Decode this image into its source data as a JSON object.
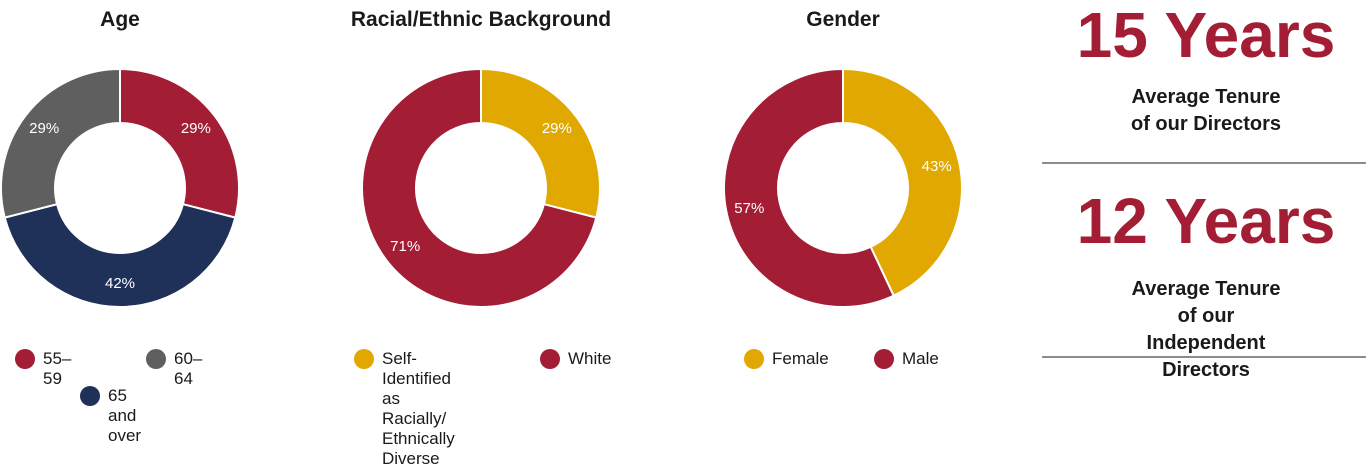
{
  "colors": {
    "red": "#a31d34",
    "gray": "#5f5f5f",
    "navy": "#1f3158",
    "gold": "#e0a800"
  },
  "chart_data": [
    {
      "type": "pie",
      "title": "Age",
      "slices": [
        {
          "label": "55–59",
          "value": 29,
          "display": "29%",
          "color": "#a31d34"
        },
        {
          "label": "65 and over",
          "value": 42,
          "display": "42%",
          "color": "#1f3158"
        },
        {
          "label": "60–64",
          "value": 29,
          "display": "29%",
          "color": "#5f5f5f"
        }
      ],
      "legend": [
        "55–59",
        "60–64",
        "65 and over"
      ]
    },
    {
      "type": "pie",
      "title": "Racial/Ethnic Background",
      "slices": [
        {
          "label": "Self-Identified\nas Racially/\nEthnically Diverse",
          "value": 29,
          "display": "29%",
          "color": "#e0a800"
        },
        {
          "label": "White",
          "value": 71,
          "display": "71%",
          "color": "#a31d34"
        }
      ],
      "legend": [
        "Self-Identified\nas Racially/\nEthnically Diverse",
        "White"
      ]
    },
    {
      "type": "pie",
      "title": "Gender",
      "slices": [
        {
          "label": "Female",
          "value": 43,
          "display": "43%",
          "color": "#e0a800"
        },
        {
          "label": "Male",
          "value": 57,
          "display": "57%",
          "color": "#a31d34"
        }
      ],
      "legend": [
        "Female",
        "Male"
      ]
    }
  ],
  "stats": [
    {
      "value": "15 Years",
      "caption": "Average Tenure\nof our Directors"
    },
    {
      "value": "12 Years",
      "caption": "Average Tenure of our\nIndependent Directors"
    }
  ]
}
